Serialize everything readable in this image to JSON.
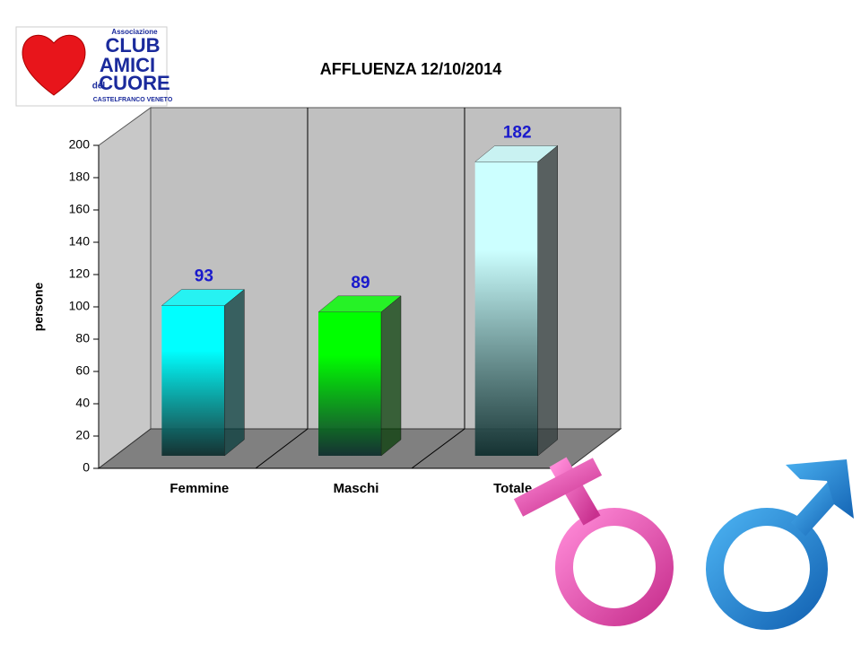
{
  "logo": {
    "line1": "Associazione",
    "line2": "CLUB",
    "line3": "AMICI",
    "line4": "del",
    "line5": "CUORE",
    "line6": "CASTELFRANCO VENETO"
  },
  "chart_data": {
    "type": "bar3d",
    "title": "AFFLUENZA 12/10/2014",
    "y_label": "persone",
    "categories": [
      "Femmine",
      "Maschi",
      "Totale"
    ],
    "values": [
      93,
      89,
      182
    ],
    "colors": [
      "#00ffff",
      "#00ff00",
      "#ccffff"
    ],
    "ylim": [
      0,
      200
    ],
    "yticks": [
      0,
      20,
      40,
      60,
      80,
      100,
      120,
      140,
      160,
      180,
      200
    ],
    "grid": false
  }
}
